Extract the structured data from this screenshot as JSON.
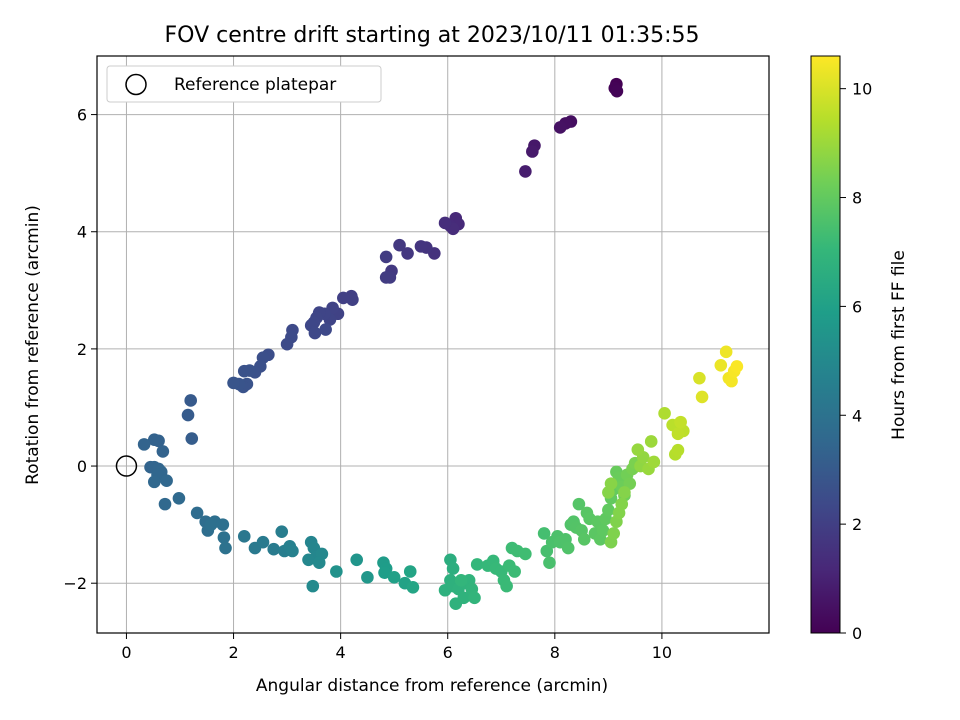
{
  "chart_data": {
    "type": "scatter",
    "title": "FOV centre drift starting at 2023/10/11 01:35:55",
    "xlabel": "Angular distance from reference (arcmin)",
    "ylabel": "Rotation from reference (arcmin)",
    "xlim": [
      -0.55,
      12.0
    ],
    "ylim": [
      -2.85,
      7.0
    ],
    "xticks": [
      0,
      2,
      4,
      6,
      8,
      10
    ],
    "yticks": [
      -2,
      0,
      2,
      4,
      6
    ],
    "grid": true,
    "legend": {
      "location": "upper-left",
      "entries": [
        "Reference platepar"
      ]
    },
    "reference_point": {
      "x": 0,
      "y": 0,
      "label": "Reference platepar"
    },
    "colorbar": {
      "label": "Hours from first FF file",
      "colormap": "viridis",
      "range": [
        0,
        10.6
      ],
      "ticks": [
        0,
        2,
        4,
        6,
        8,
        10
      ]
    },
    "colormap_stops": [
      "#440154",
      "#482878",
      "#3e4989",
      "#31688e",
      "#26828e",
      "#1f9e89",
      "#35b779",
      "#6ece58",
      "#b5de2b",
      "#fde725"
    ],
    "series": [
      {
        "points": [
          [
            9.15,
            6.52,
            0.0
          ],
          [
            9.12,
            6.45,
            0.05
          ],
          [
            9.16,
            6.4,
            0.1
          ],
          [
            8.3,
            5.88,
            0.4
          ],
          [
            8.2,
            5.85,
            0.45
          ],
          [
            8.1,
            5.78,
            0.5
          ],
          [
            7.62,
            5.47,
            0.7
          ],
          [
            7.58,
            5.37,
            0.75
          ],
          [
            7.45,
            5.03,
            0.85
          ],
          [
            6.15,
            4.23,
            1.2
          ],
          [
            6.2,
            4.13,
            1.25
          ],
          [
            6.05,
            4.1,
            1.3
          ],
          [
            6.1,
            4.05,
            1.35
          ],
          [
            5.95,
            4.15,
            1.4
          ],
          [
            5.75,
            3.63,
            1.55
          ],
          [
            5.6,
            3.73,
            1.6
          ],
          [
            5.5,
            3.75,
            1.65
          ],
          [
            5.25,
            3.63,
            1.7
          ],
          [
            5.1,
            3.77,
            1.75
          ],
          [
            4.95,
            3.33,
            1.8
          ],
          [
            4.92,
            3.22,
            1.85
          ],
          [
            4.85,
            3.22,
            1.88
          ],
          [
            4.85,
            3.57,
            1.9
          ],
          [
            4.2,
            2.9,
            2.0
          ],
          [
            4.22,
            2.84,
            2.02
          ],
          [
            4.05,
            2.87,
            2.05
          ],
          [
            3.95,
            2.6,
            2.1
          ],
          [
            3.85,
            2.7,
            2.15
          ],
          [
            3.8,
            2.5,
            2.18
          ],
          [
            3.7,
            2.6,
            2.2
          ],
          [
            3.6,
            2.62,
            2.22
          ],
          [
            3.55,
            2.53,
            2.25
          ],
          [
            3.5,
            2.45,
            2.28
          ],
          [
            3.45,
            2.4,
            2.3
          ],
          [
            3.52,
            2.27,
            2.32
          ],
          [
            3.72,
            2.33,
            2.35
          ],
          [
            3.1,
            2.32,
            2.4
          ],
          [
            3.08,
            2.2,
            2.42
          ],
          [
            3.0,
            2.08,
            2.45
          ],
          [
            2.65,
            1.9,
            2.55
          ],
          [
            2.55,
            1.85,
            2.6
          ],
          [
            2.5,
            1.7,
            2.62
          ],
          [
            2.4,
            1.6,
            2.65
          ],
          [
            2.3,
            1.63,
            2.68
          ],
          [
            2.2,
            1.62,
            2.7
          ],
          [
            2.25,
            1.4,
            2.72
          ],
          [
            2.18,
            1.35,
            2.75
          ],
          [
            2.1,
            1.4,
            2.78
          ],
          [
            2.0,
            1.42,
            2.8
          ],
          [
            1.2,
            1.12,
            3.0
          ],
          [
            1.15,
            0.87,
            3.05
          ],
          [
            1.22,
            0.47,
            3.1
          ],
          [
            0.6,
            0.43,
            3.3
          ],
          [
            0.52,
            0.45,
            3.32
          ],
          [
            0.68,
            0.25,
            3.35
          ],
          [
            0.33,
            0.37,
            3.38
          ],
          [
            0.45,
            -0.02,
            3.4
          ],
          [
            0.52,
            -0.02,
            3.42
          ],
          [
            0.6,
            -0.05,
            3.45
          ],
          [
            0.65,
            -0.1,
            3.48
          ],
          [
            0.58,
            -0.15,
            3.5
          ],
          [
            0.75,
            -0.25,
            3.52
          ],
          [
            0.52,
            -0.27,
            3.55
          ],
          [
            0.72,
            -0.65,
            3.58
          ],
          [
            0.98,
            -0.55,
            3.62
          ],
          [
            1.32,
            -0.8,
            3.7
          ],
          [
            1.48,
            -0.95,
            3.75
          ],
          [
            1.52,
            -1.1,
            3.8
          ],
          [
            1.65,
            -0.95,
            3.85
          ],
          [
            1.58,
            -1.0,
            3.88
          ],
          [
            1.8,
            -1.0,
            3.9
          ],
          [
            1.82,
            -1.22,
            3.95
          ],
          [
            1.85,
            -1.4,
            4.0
          ],
          [
            2.2,
            -1.2,
            4.2
          ],
          [
            2.4,
            -1.4,
            4.3
          ],
          [
            2.55,
            -1.3,
            4.35
          ],
          [
            2.75,
            -1.42,
            4.4
          ],
          [
            2.9,
            -1.12,
            4.5
          ],
          [
            2.95,
            -1.45,
            4.55
          ],
          [
            3.05,
            -1.37,
            4.6
          ],
          [
            3.1,
            -1.45,
            4.65
          ],
          [
            3.45,
            -1.3,
            4.8
          ],
          [
            3.5,
            -1.4,
            4.85
          ],
          [
            3.55,
            -1.55,
            4.9
          ],
          [
            3.4,
            -1.6,
            4.92
          ],
          [
            3.65,
            -1.5,
            4.95
          ],
          [
            3.6,
            -1.65,
            5.0
          ],
          [
            3.48,
            -2.05,
            5.05
          ],
          [
            3.92,
            -1.8,
            5.4
          ],
          [
            4.3,
            -1.6,
            5.5
          ],
          [
            4.5,
            -1.9,
            5.6
          ],
          [
            4.8,
            -1.65,
            5.8
          ],
          [
            4.85,
            -1.75,
            5.85
          ],
          [
            4.82,
            -1.82,
            5.88
          ],
          [
            5.0,
            -1.9,
            6.0
          ],
          [
            5.2,
            -2.0,
            6.1
          ],
          [
            5.3,
            -1.8,
            6.15
          ],
          [
            5.35,
            -2.07,
            6.2
          ],
          [
            6.05,
            -1.6,
            6.6
          ],
          [
            6.1,
            -1.75,
            6.65
          ],
          [
            6.05,
            -1.95,
            6.7
          ],
          [
            5.95,
            -2.12,
            6.72
          ],
          [
            6.1,
            -2.05,
            6.75
          ],
          [
            6.2,
            -2.1,
            6.78
          ],
          [
            6.15,
            -2.35,
            6.8
          ],
          [
            6.3,
            -2.25,
            6.82
          ],
          [
            6.35,
            -2.0,
            6.85
          ],
          [
            6.4,
            -1.95,
            6.87
          ],
          [
            6.45,
            -2.1,
            6.9
          ],
          [
            6.5,
            -2.25,
            6.92
          ],
          [
            6.25,
            -1.95,
            6.95
          ],
          [
            6.55,
            -1.68,
            7.0
          ],
          [
            6.75,
            -1.7,
            7.05
          ],
          [
            6.85,
            -1.62,
            7.08
          ],
          [
            6.9,
            -1.75,
            7.1
          ],
          [
            7.0,
            -1.8,
            7.12
          ],
          [
            7.05,
            -1.95,
            7.15
          ],
          [
            7.1,
            -2.05,
            7.18
          ],
          [
            7.15,
            -1.7,
            7.2
          ],
          [
            7.25,
            -1.8,
            7.22
          ],
          [
            7.2,
            -1.4,
            7.25
          ],
          [
            7.3,
            -1.45,
            7.28
          ],
          [
            7.45,
            -1.5,
            7.3
          ],
          [
            7.8,
            -1.15,
            7.4
          ],
          [
            7.85,
            -1.45,
            7.45
          ],
          [
            7.9,
            -1.65,
            7.5
          ],
          [
            7.95,
            -1.3,
            7.52
          ],
          [
            8.05,
            -1.2,
            7.55
          ],
          [
            8.1,
            -1.3,
            7.58
          ],
          [
            8.2,
            -1.25,
            7.6
          ],
          [
            8.25,
            -1.4,
            7.62
          ],
          [
            8.3,
            -1.0,
            7.65
          ],
          [
            8.35,
            -0.95,
            7.68
          ],
          [
            8.4,
            -1.05,
            7.7
          ],
          [
            8.45,
            -0.65,
            7.72
          ],
          [
            8.5,
            -1.1,
            7.75
          ],
          [
            8.55,
            -1.25,
            7.78
          ],
          [
            8.6,
            -0.8,
            7.8
          ],
          [
            8.65,
            -0.9,
            7.82
          ],
          [
            8.75,
            -1.15,
            7.85
          ],
          [
            8.8,
            -0.95,
            7.88
          ],
          [
            8.85,
            -1.25,
            7.9
          ],
          [
            8.9,
            -1.1,
            7.92
          ],
          [
            8.95,
            -0.9,
            7.95
          ],
          [
            9.0,
            -0.75,
            7.98
          ],
          [
            9.05,
            -0.55,
            8.0
          ],
          [
            9.1,
            -0.4,
            8.05
          ],
          [
            9.15,
            -0.1,
            8.1
          ],
          [
            9.2,
            -0.2,
            8.15
          ],
          [
            9.25,
            -0.35,
            8.2
          ],
          [
            9.3,
            -0.5,
            8.25
          ],
          [
            9.35,
            -0.15,
            8.3
          ],
          [
            9.4,
            -0.3,
            8.35
          ],
          [
            9.45,
            -0.05,
            8.4
          ],
          [
            9.5,
            0.05,
            8.45
          ],
          [
            9.05,
            -1.3,
            8.5
          ],
          [
            9.1,
            -1.15,
            8.52
          ],
          [
            9.15,
            -0.95,
            8.55
          ],
          [
            9.2,
            -0.8,
            8.58
          ],
          [
            9.25,
            -0.65,
            8.6
          ],
          [
            9.3,
            -0.45,
            8.62
          ],
          [
            9.0,
            -0.45,
            8.65
          ],
          [
            9.05,
            -0.3,
            8.68
          ],
          [
            9.6,
            0.0,
            8.8
          ],
          [
            9.65,
            0.15,
            8.85
          ],
          [
            9.55,
            0.28,
            8.9
          ],
          [
            9.75,
            -0.05,
            8.95
          ],
          [
            9.8,
            0.42,
            9.0
          ],
          [
            9.85,
            0.07,
            9.05
          ],
          [
            10.05,
            0.9,
            9.3
          ],
          [
            10.25,
            0.2,
            9.4
          ],
          [
            10.3,
            0.27,
            9.45
          ],
          [
            10.2,
            0.7,
            9.5
          ],
          [
            10.4,
            0.6,
            9.55
          ],
          [
            10.3,
            0.55,
            9.6
          ],
          [
            10.35,
            0.75,
            9.65
          ],
          [
            10.7,
            1.5,
            10.0
          ],
          [
            10.75,
            1.18,
            10.1
          ],
          [
            11.1,
            1.72,
            10.3
          ],
          [
            11.2,
            1.95,
            10.35
          ],
          [
            11.25,
            1.5,
            10.4
          ],
          [
            11.3,
            1.45,
            10.45
          ],
          [
            11.35,
            1.62,
            10.5
          ],
          [
            11.4,
            1.7,
            10.55
          ]
        ]
      }
    ]
  }
}
